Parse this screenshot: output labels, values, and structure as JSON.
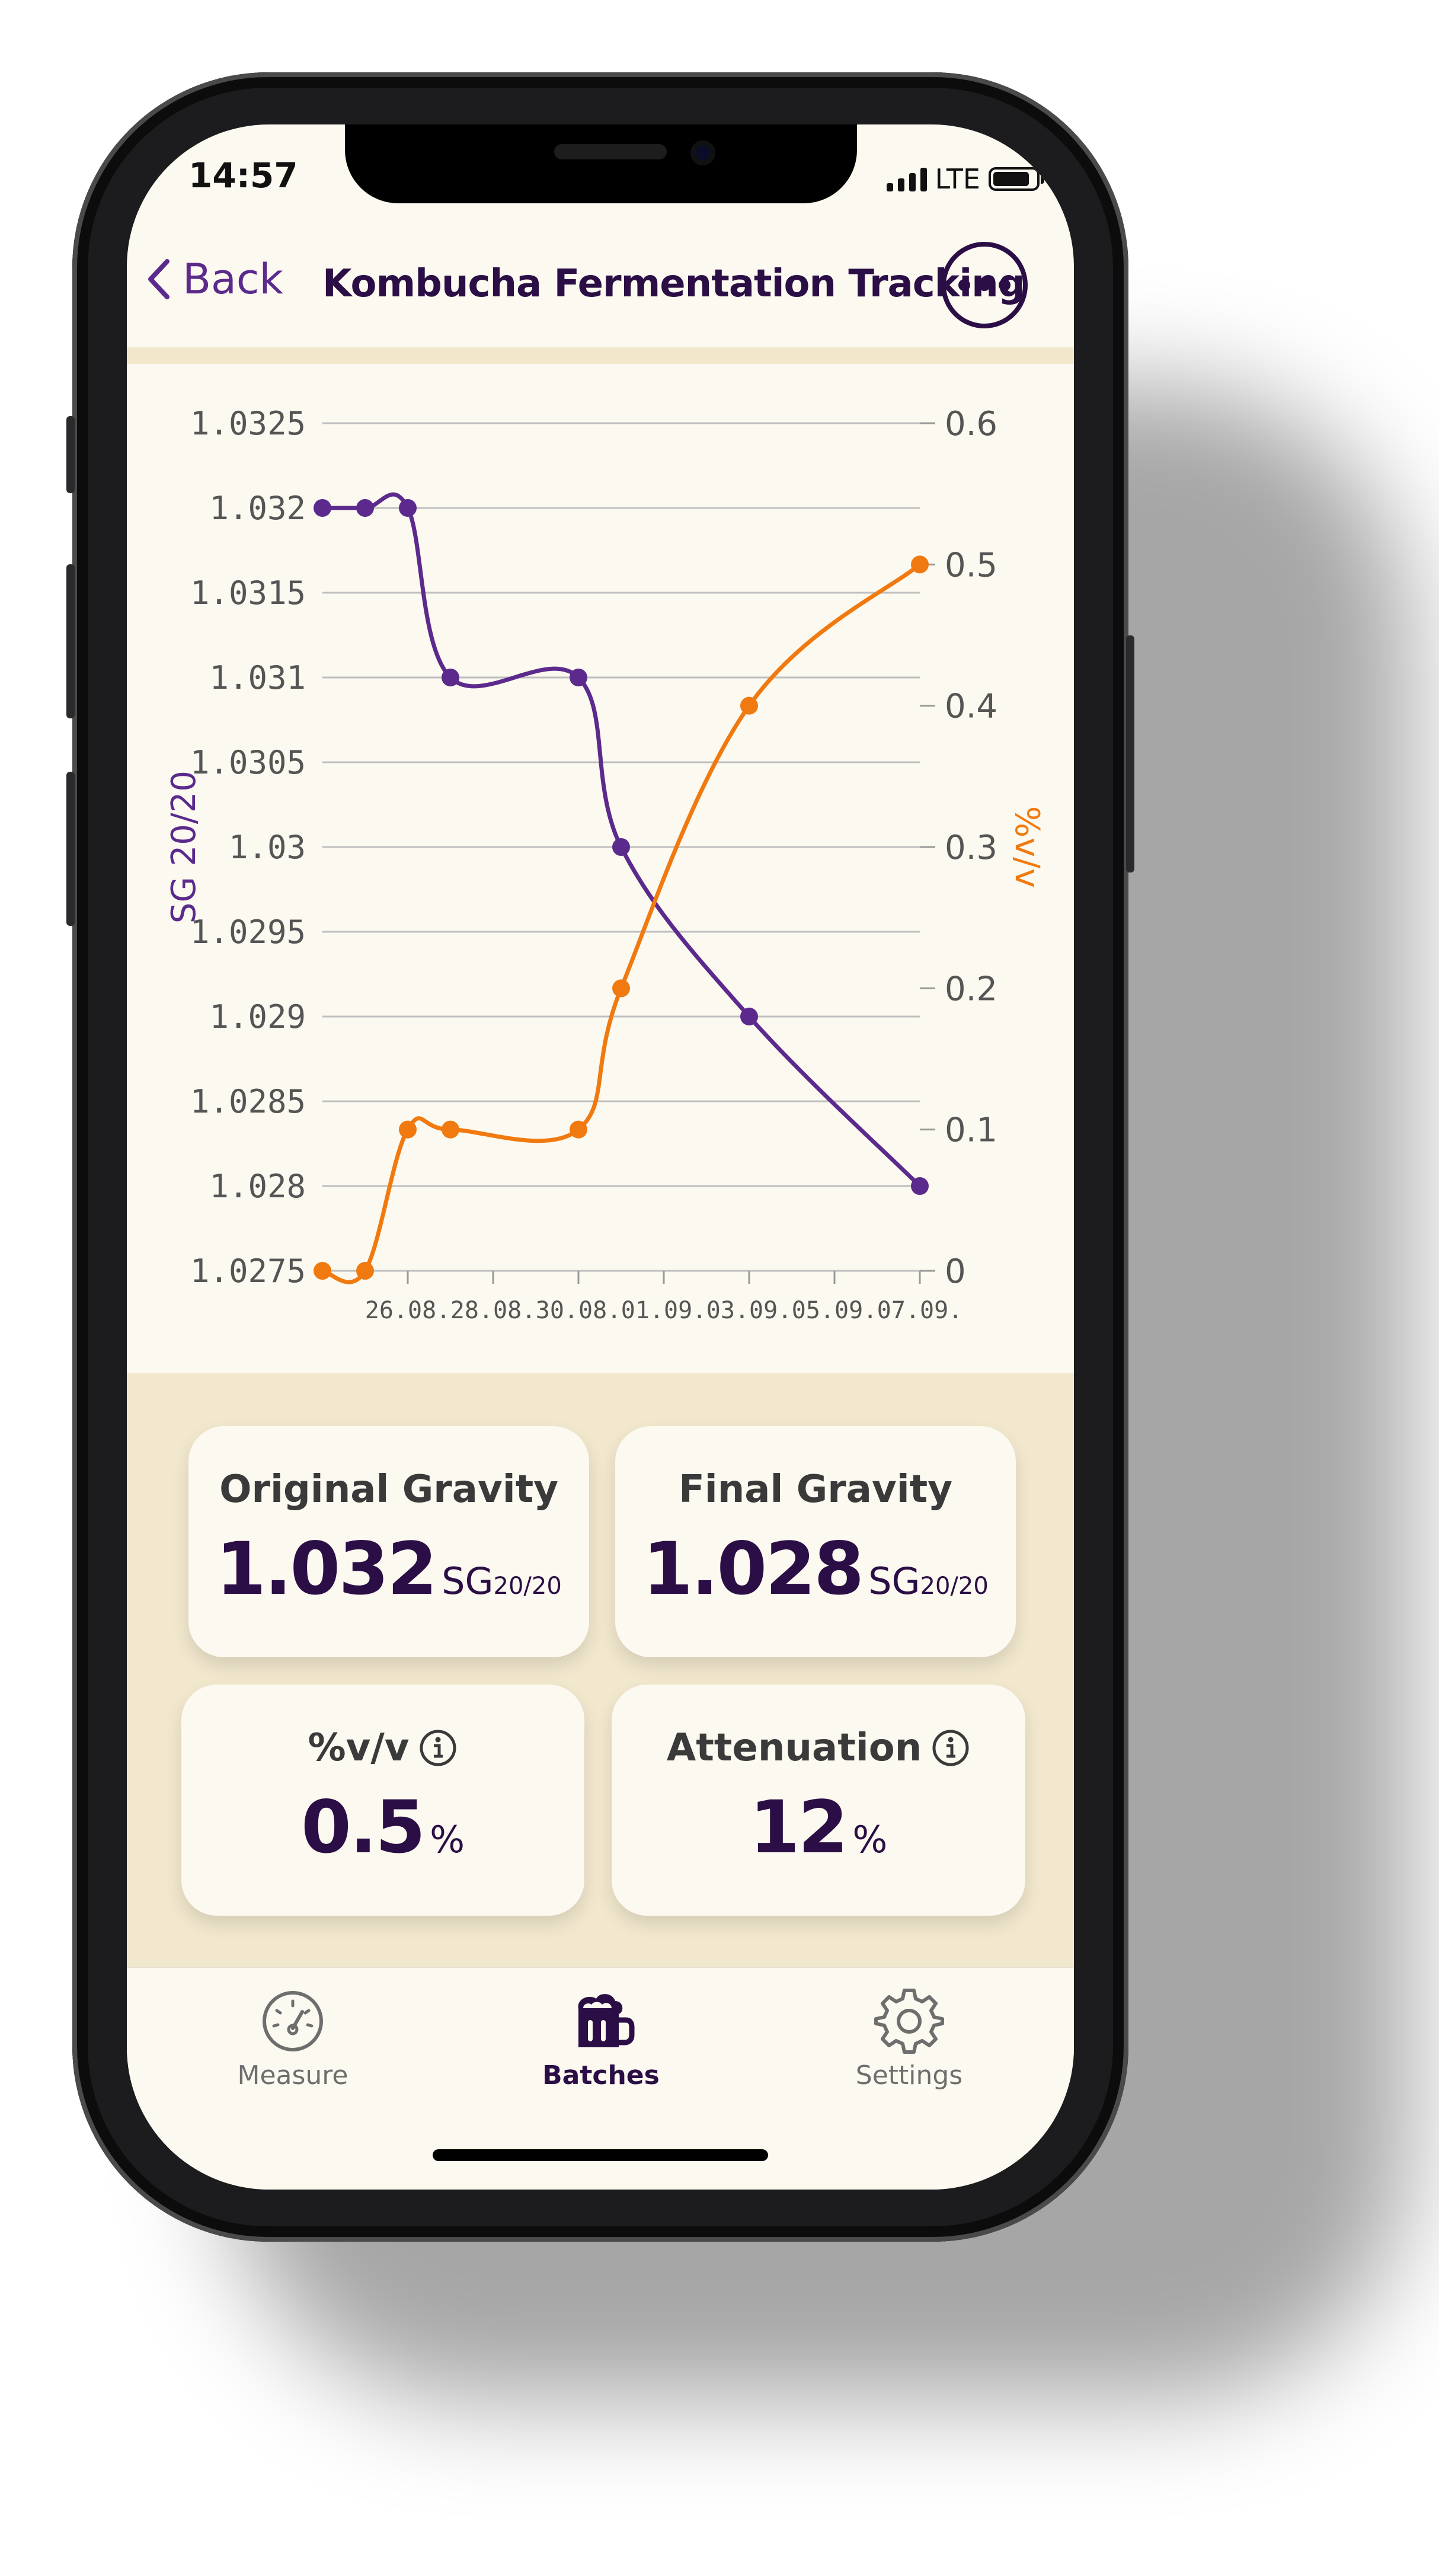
{
  "status_bar": {
    "time": "14:57",
    "network": "LTE"
  },
  "nav": {
    "back_label": "Back",
    "title": "Kombucha Fermentation Tracking"
  },
  "colors": {
    "accent_purple": "#5b2a8c",
    "series_orange": "#f07a10",
    "background": "#fcf9f0",
    "stats_bg": "#f2e8ce",
    "dark_text": "#2b0e45"
  },
  "chart_data": {
    "type": "line",
    "x_ticks": [
      "26.08.",
      "28.08.",
      "30.08.",
      "01.09.",
      "03.09.",
      "05.09.",
      "07.09."
    ],
    "y_left_ticks": [
      "1.0325",
      "1.032",
      "1.0315",
      "1.031",
      "1.0305",
      "1.03",
      "1.0295",
      "1.029",
      "1.0285",
      "1.028",
      "1.0275"
    ],
    "y_right_ticks": [
      "0.6",
      "0.5",
      "0.4",
      "0.3",
      "0.2",
      "0.1",
      "0"
    ],
    "ylabel_left": "SG 20/20",
    "ylabel_right": "%v/v",
    "ylim_left": [
      1.0275,
      1.0325
    ],
    "ylim_right": [
      0,
      0.6
    ],
    "xlim": [
      "24.08.",
      "07.09."
    ],
    "grid": true,
    "series": [
      {
        "name": "SG 20/20",
        "axis": "left",
        "color": "#5b2a8c",
        "x": [
          "24.08.",
          "25.08.",
          "26.08.",
          "27.08.",
          "30.08.",
          "31.08.",
          "03.09.",
          "07.09."
        ],
        "values": [
          1.032,
          1.032,
          1.032,
          1.031,
          1.031,
          1.03,
          1.029,
          1.028
        ]
      },
      {
        "name": "%v/v",
        "axis": "right",
        "color": "#f07a10",
        "x": [
          "24.08.",
          "25.08.",
          "26.08.",
          "27.08.",
          "30.08.",
          "31.08.",
          "03.09.",
          "07.09."
        ],
        "values": [
          0,
          0,
          0.1,
          0.1,
          0.1,
          0.2,
          0.4,
          0.5
        ]
      }
    ]
  },
  "stats": {
    "original_gravity": {
      "title": "Original Gravity",
      "value": "1.032",
      "unit": "SG",
      "unit_sub": "20/20"
    },
    "final_gravity": {
      "title": "Final Gravity",
      "value": "1.028",
      "unit": "SG",
      "unit_sub": "20/20"
    },
    "abv": {
      "title": "%v/v",
      "value": "0.5",
      "unit": "%"
    },
    "attenuation": {
      "title": "Attenuation",
      "value": "12",
      "unit": "%"
    }
  },
  "tabbar": {
    "items": [
      {
        "label": "Measure",
        "icon": "gauge-icon",
        "active": false
      },
      {
        "label": "Batches",
        "icon": "beer-mug-icon",
        "active": true
      },
      {
        "label": "Settings",
        "icon": "gear-icon",
        "active": false
      }
    ]
  }
}
